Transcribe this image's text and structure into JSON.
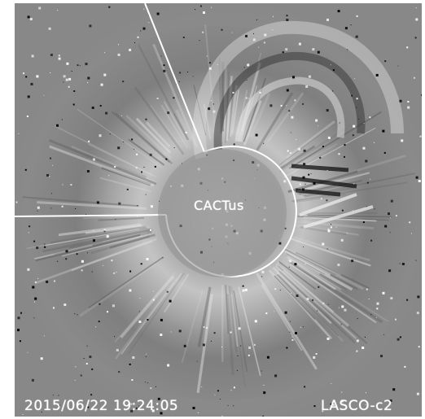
{
  "overlay": {
    "center_label": "CACTus",
    "timestamp": "2015/06/22 19:24:05",
    "instrument": "LASCO-c2"
  },
  "colors": {
    "background_gray": "#8a8a8a",
    "outline": "#ffffff",
    "dark_streak": "#1a1a1a",
    "bright_streak": "#e8e8e8"
  }
}
